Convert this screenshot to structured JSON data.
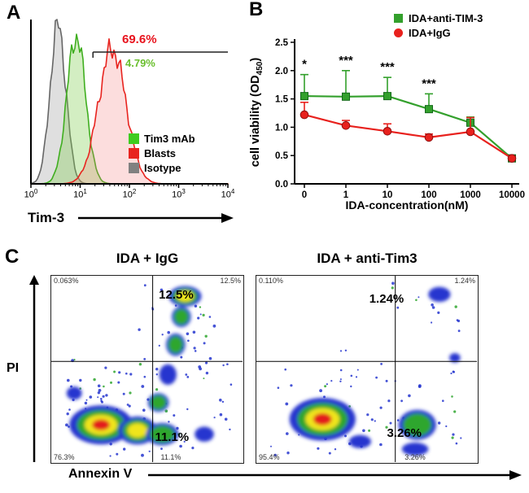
{
  "figure": {
    "background": "#ffffff"
  },
  "chart_data": [
    {
      "panel_label": "A",
      "type": "histogram",
      "xlabel": "Tim-3",
      "x_scale": "log10",
      "x_tick_base": "10",
      "x_tick_exponents": [
        0,
        1,
        2,
        3,
        4
      ],
      "series": [
        {
          "name": "Isotype",
          "color": "#666666",
          "fill": "rgba(150,150,150,0.30)",
          "peak_decade": 0.55,
          "sigma_decades": 0.16,
          "rel_height": 0.97
        },
        {
          "name": "Tim3 mAb",
          "color": "#3fae1f",
          "fill": "rgba(130,205,80,0.35)",
          "peak_decade": 0.92,
          "sigma_decades": 0.19,
          "rel_height": 0.9
        },
        {
          "name": "Blasts",
          "color": "#e8241f",
          "fill": "rgba(245,120,120,0.25)",
          "peak_decade": 1.65,
          "sigma_decades": 0.28,
          "rel_height": 0.82
        }
      ],
      "gate": {
        "start_decade": 1.26,
        "labels": [
          {
            "text": "69.6%",
            "color": "#e8131d"
          },
          {
            "text": "4.79%",
            "color": "#6abf2e"
          }
        ]
      },
      "legend": [
        {
          "label": "Tim3 mAb",
          "color": "#3fcc1f"
        },
        {
          "label": "Blasts",
          "color": "#e8241f"
        },
        {
          "label": "Isotype",
          "color": "#808080"
        }
      ]
    },
    {
      "panel_label": "B",
      "type": "line",
      "categories": [
        "0",
        "1",
        "10",
        "100",
        "1000",
        "10000"
      ],
      "xlabel": "IDA-concentration(nM)",
      "ylabel_prefix": "cell viability (OD",
      "ylabel_sub": "450",
      "ylabel_suffix": ")",
      "ylim": [
        0,
        2.5
      ],
      "yticks": [
        0,
        0.5,
        1,
        1.5,
        2,
        2.5
      ],
      "series": [
        {
          "name": "IDA+anti-TIM-3",
          "color": "#33a02c",
          "marker": "square",
          "values": [
            1.55,
            1.54,
            1.55,
            1.32,
            1.08,
            0.45
          ],
          "errors_up": [
            0.38,
            0.46,
            0.33,
            0.27,
            0.1,
            0.03
          ]
        },
        {
          "name": "IDA+IgG",
          "color": "#e8211d",
          "marker": "circle",
          "values": [
            1.22,
            1.03,
            0.93,
            0.82,
            0.92,
            0.45
          ],
          "errors_up": [
            0.22,
            0.09,
            0.13,
            0.06,
            0.25,
            0.03
          ]
        }
      ],
      "significance": [
        {
          "category_index": 0,
          "text": "*"
        },
        {
          "category_index": 1,
          "text": "***"
        },
        {
          "category_index": 2,
          "text": "***"
        },
        {
          "category_index": 3,
          "text": "***"
        }
      ]
    },
    {
      "panel_label": "C",
      "type": "density-scatter",
      "xlabel": "Annexin V",
      "ylabel": "PI",
      "density_colors": [
        "#2636cf",
        "#2fa62f",
        "#f0e51e",
        "#e31a1a"
      ],
      "plots": [
        {
          "title": "IDA + IgG",
          "cross": {
            "x": 0.53,
            "y": 0.46
          },
          "quadrants": {
            "top_left": "0.063%",
            "top_right": "12.5%",
            "bottom_left": "76.3%",
            "bottom_right": "11.1%"
          },
          "callouts": [
            {
              "text": "12.5%"
            },
            {
              "text": "11.1%"
            }
          ],
          "clusters": [
            {
              "x": 0.26,
              "y": 0.8,
              "rx": 0.165,
              "ry": 0.105,
              "levels": 4
            },
            {
              "x": 0.45,
              "y": 0.83,
              "rx": 0.1,
              "ry": 0.075,
              "levels": 3
            },
            {
              "x": 0.58,
              "y": 0.85,
              "rx": 0.085,
              "ry": 0.06,
              "levels": 2
            },
            {
              "x": 0.56,
              "y": 0.68,
              "rx": 0.055,
              "ry": 0.05,
              "levels": 2
            },
            {
              "x": 0.61,
              "y": 0.53,
              "rx": 0.045,
              "ry": 0.055,
              "levels": 1
            },
            {
              "x": 0.65,
              "y": 0.37,
              "rx": 0.05,
              "ry": 0.06,
              "levels": 2
            },
            {
              "x": 0.68,
              "y": 0.22,
              "rx": 0.05,
              "ry": 0.055,
              "levels": 2
            },
            {
              "x": 0.7,
              "y": 0.11,
              "rx": 0.085,
              "ry": 0.055,
              "levels": 3
            },
            {
              "x": 0.8,
              "y": 0.85,
              "rx": 0.05,
              "ry": 0.04,
              "levels": 1
            },
            {
              "x": 0.12,
              "y": 0.63,
              "rx": 0.04,
              "ry": 0.035,
              "levels": 1
            }
          ],
          "speckles": [
            {
              "x0": 0.06,
              "x1": 0.95,
              "y0": 0.45,
              "y1": 0.97,
              "n": 70
            },
            {
              "x0": 0.45,
              "x1": 0.88,
              "y0": 0.05,
              "y1": 0.45,
              "n": 30
            },
            {
              "x0": 0.1,
              "x1": 0.5,
              "y0": 0.55,
              "y1": 0.75,
              "n": 20
            }
          ]
        },
        {
          "title": "IDA + anti-Tim3",
          "cross": {
            "x": 0.63,
            "y": 0.46
          },
          "quadrants": {
            "top_left": "0.110%",
            "top_right": "1.24%",
            "bottom_left": "95.4%",
            "bottom_right": "3.26%"
          },
          "callouts": [
            {
              "text": "1.24%"
            },
            {
              "text": "3.26%"
            }
          ],
          "clusters": [
            {
              "x": 0.3,
              "y": 0.77,
              "rx": 0.15,
              "ry": 0.115,
              "levels": 4
            },
            {
              "x": 0.47,
              "y": 0.89,
              "rx": 0.05,
              "ry": 0.035,
              "levels": 1
            },
            {
              "x": 0.73,
              "y": 0.8,
              "rx": 0.085,
              "ry": 0.08,
              "levels": 2
            },
            {
              "x": 0.72,
              "y": 0.93,
              "rx": 0.06,
              "ry": 0.035,
              "levels": 1
            },
            {
              "x": 0.83,
              "y": 0.1,
              "rx": 0.05,
              "ry": 0.04,
              "levels": 1
            },
            {
              "x": 0.9,
              "y": 0.44,
              "rx": 0.025,
              "ry": 0.025,
              "levels": 1
            }
          ],
          "speckles": [
            {
              "x0": 0.06,
              "x1": 0.95,
              "y0": 0.5,
              "y1": 0.97,
              "n": 60
            },
            {
              "x0": 0.6,
              "x1": 0.95,
              "y0": 0.04,
              "y1": 0.3,
              "n": 14
            },
            {
              "x0": 0.3,
              "x1": 0.6,
              "y0": 0.4,
              "y1": 0.6,
              "n": 8
            }
          ]
        }
      ]
    }
  ]
}
